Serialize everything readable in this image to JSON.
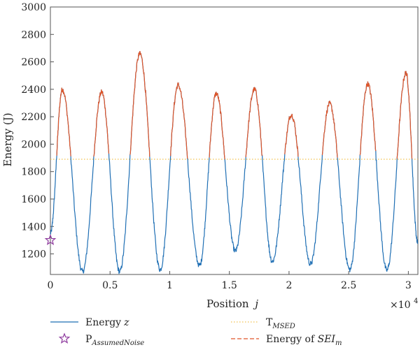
{
  "chart_data": {
    "type": "line",
    "xlabel": "Position",
    "xlabel_var": "j",
    "ylabel": "Energy (J)",
    "x_multiplier_label": "×10",
    "x_multiplier_exp": "4",
    "xlim": [
      0,
      3.08
    ],
    "ylim": [
      1050,
      3000
    ],
    "x_ticks": [
      0,
      0.5,
      1,
      1.5,
      2,
      2.5,
      3
    ],
    "x_tick_labels": [
      "0",
      "0.5",
      "1",
      "1.5",
      "2",
      "2.5",
      "3"
    ],
    "y_ticks": [
      1200,
      1400,
      1600,
      1800,
      2000,
      2200,
      2400,
      2600,
      2800,
      3000
    ],
    "y_tick_labels": [
      "1200",
      "1400",
      "1600",
      "1800",
      "2000",
      "2200",
      "2400",
      "2600",
      "2800",
      "3000"
    ],
    "threshold": 1890,
    "colors": {
      "energy": "#1f6fb4",
      "sei": "#e0562a",
      "threshold": "#f2c14e",
      "noise_marker": "#8e3a9e"
    },
    "series": [
      {
        "name": "Energy z",
        "peaks": [
          {
            "x": 0.1,
            "y": 2400
          },
          {
            "x": 0.43,
            "y": 2380
          },
          {
            "x": 0.75,
            "y": 2660
          },
          {
            "x": 1.07,
            "y": 2430
          },
          {
            "x": 1.39,
            "y": 2370
          },
          {
            "x": 1.71,
            "y": 2400
          },
          {
            "x": 2.02,
            "y": 2215
          },
          {
            "x": 2.34,
            "y": 2295
          },
          {
            "x": 2.66,
            "y": 2440
          },
          {
            "x": 2.98,
            "y": 2520
          }
        ],
        "troughs": [
          {
            "x": 0.27,
            "y": 1070
          },
          {
            "x": 0.58,
            "y": 1070
          },
          {
            "x": 0.92,
            "y": 1085
          },
          {
            "x": 1.25,
            "y": 1115
          },
          {
            "x": 1.55,
            "y": 1220
          },
          {
            "x": 1.86,
            "y": 1145
          },
          {
            "x": 2.18,
            "y": 1125
          },
          {
            "x": 2.51,
            "y": 1085
          },
          {
            "x": 2.82,
            "y": 1080
          }
        ],
        "start": {
          "x": 0.0,
          "y": 1350
        },
        "end": {
          "x": 3.08,
          "y": 1280
        }
      }
    ],
    "noise_point": {
      "x": 0.0,
      "y": 1300
    },
    "legend": [
      {
        "key": "energy",
        "text": "Energy",
        "var": "z",
        "sub": ""
      },
      {
        "key": "noise",
        "text": "P",
        "var": "",
        "sub": "AssumedNoise"
      },
      {
        "key": "threshold",
        "text": "T",
        "var": "",
        "sub": "MSED"
      },
      {
        "key": "sei",
        "text": "Energy of ",
        "var": "SEI",
        "sub": "m"
      }
    ]
  }
}
